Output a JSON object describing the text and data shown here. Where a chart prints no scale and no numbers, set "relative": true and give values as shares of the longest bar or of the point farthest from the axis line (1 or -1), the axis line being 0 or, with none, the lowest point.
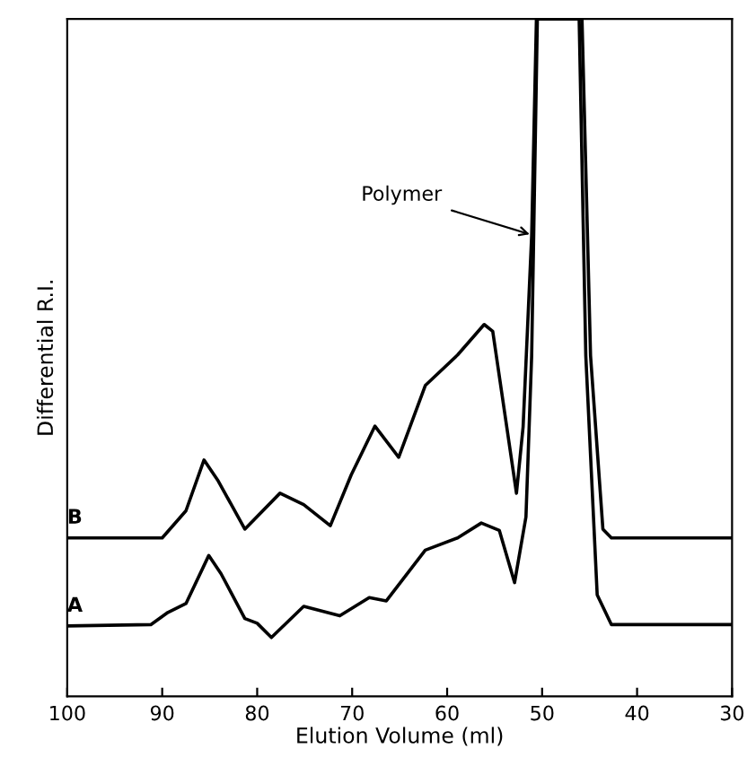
{
  "chart_data": {
    "type": "line",
    "relative": true,
    "xlabel": "Elution Volume (ml)",
    "ylabel": "Differential R.I.",
    "xlim": [
      100,
      30
    ],
    "xticks": [
      100,
      90,
      80,
      70,
      60,
      50,
      40,
      30
    ],
    "grid": false,
    "legend": false,
    "marker": "none",
    "line_style": "solid",
    "annotations": [
      {
        "text": "Polymer",
        "x": 50.8,
        "y": 0.68
      }
    ],
    "series": [
      {
        "name": "B",
        "color": "#000000",
        "x": [
          100,
          90,
          87.5,
          85.6,
          84.1,
          81.3,
          77.6,
          75.1,
          72.3,
          70.1,
          67.6,
          65.1,
          62.3,
          58.9,
          56.1,
          55.2,
          52.7,
          52.0,
          51.1,
          50.6,
          45.8,
          44.9,
          43.6,
          42.7,
          30
        ],
        "values": [
          0.234,
          0.234,
          0.274,
          0.349,
          0.318,
          0.247,
          0.3,
          0.283,
          0.252,
          0.327,
          0.399,
          0.353,
          0.459,
          0.504,
          0.549,
          0.539,
          0.3,
          0.398,
          0.68,
          1.0,
          1.0,
          0.503,
          0.247,
          0.234,
          0.234
        ]
      },
      {
        "name": "A",
        "color": "#000000",
        "x": [
          100,
          91.2,
          89.4,
          87.5,
          85.1,
          83.8,
          81.3,
          80.0,
          78.5,
          75.1,
          71.3,
          68.2,
          66.4,
          62.3,
          58.9,
          56.4,
          54.5,
          52.9,
          51.7,
          51.1,
          50.5,
          46.1,
          45.4,
          44.2,
          42.7,
          30
        ],
        "values": [
          0.104,
          0.106,
          0.124,
          0.137,
          0.208,
          0.181,
          0.115,
          0.108,
          0.087,
          0.133,
          0.119,
          0.146,
          0.141,
          0.216,
          0.234,
          0.256,
          0.245,
          0.168,
          0.265,
          0.503,
          1.0,
          1.0,
          0.503,
          0.15,
          0.106,
          0.106
        ]
      }
    ]
  }
}
